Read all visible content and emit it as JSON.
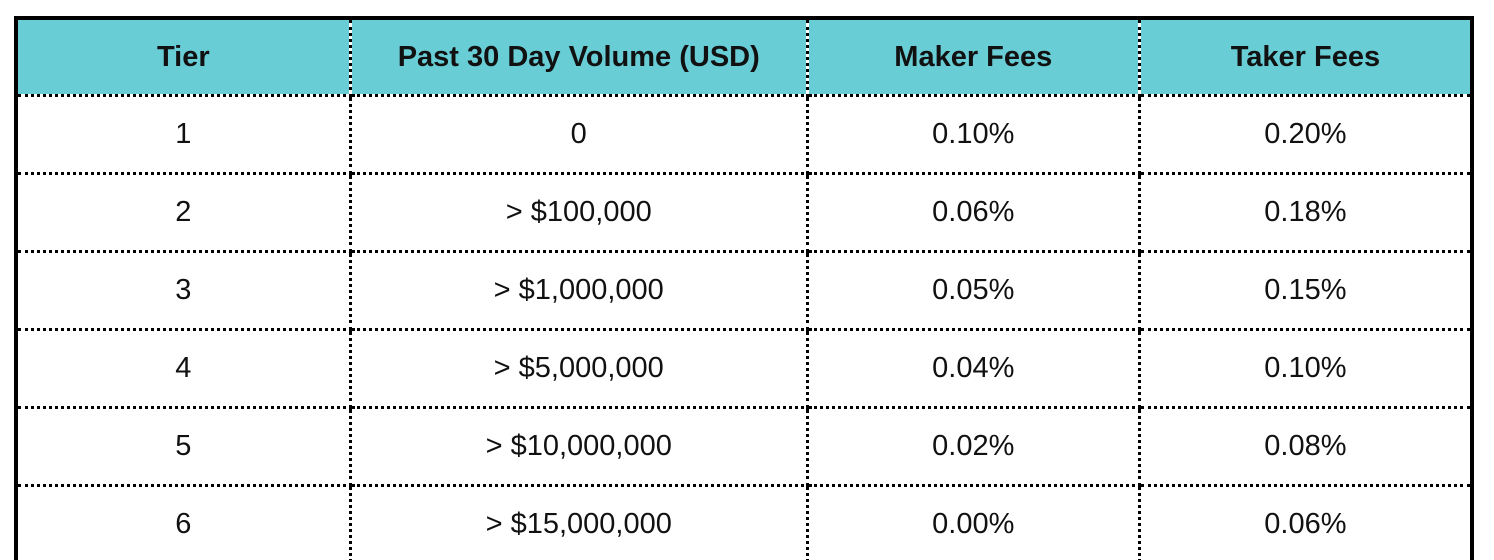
{
  "chart_data": {
    "type": "table",
    "title": "",
    "columns": [
      "Tier",
      "Past 30 Day Volume (USD)",
      "Maker Fees",
      "Taker Fees"
    ],
    "rows": [
      [
        "1",
        "0",
        "0.10%",
        "0.20%"
      ],
      [
        "2",
        "> $100,000",
        "0.06%",
        "0.18%"
      ],
      [
        "3",
        "> $1,000,000",
        "0.05%",
        "0.15%"
      ],
      [
        "4",
        "> $5,000,000",
        "0.04%",
        "0.10%"
      ],
      [
        "5",
        "> $10,000,000",
        "0.02%",
        "0.08%"
      ],
      [
        "6",
        "> $15,000,000",
        "0.00%",
        "0.06%"
      ]
    ],
    "layout": {
      "header_background": "#69CDD6",
      "outer_border_color": "#000000",
      "outer_border_style": "solid",
      "inner_border_color": "#000000",
      "inner_border_style": "dotted",
      "text_color": "#111111",
      "cell_alignment": "center"
    }
  }
}
